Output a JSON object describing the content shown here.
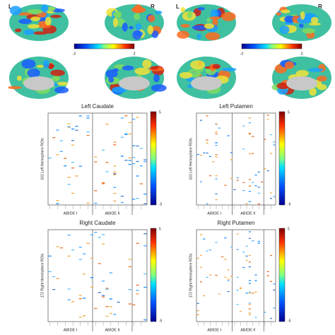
{
  "brain_maps": [
    {
      "left_label": "L",
      "right_label": "R",
      "colorbar": {
        "min": "-3",
        "max": "3"
      }
    },
    {
      "left_label": "L",
      "right_label": "R",
      "colorbar": {
        "min": "-3",
        "max": "3"
      }
    }
  ],
  "panels": [
    {
      "title": "Left Caudate",
      "y_label": "161 Left Hemisphere ROIs",
      "x_groups": [
        "ABIDE I",
        "ABIDE II"
      ],
      "colorbar": {
        "max": "5",
        "min": "-5"
      }
    },
    {
      "title": "Left Putamen",
      "y_label": "161 Left Hemisphere ROIs",
      "x_groups": [
        "ABIDE I",
        "ABIDE II"
      ],
      "colorbar": {
        "max": "5",
        "min": "-5"
      }
    },
    {
      "title": "Right Caudate",
      "y_label": "172 Right Hemisphere ROIs",
      "x_groups": [
        "ABIDE I",
        "ABIDE II"
      ],
      "colorbar": {
        "max": "5",
        "min": "-5"
      }
    },
    {
      "title": "Right Putamen",
      "y_label": "172 Right Hemisphere ROIs",
      "x_groups": [
        "ABIDE I",
        "ABIDE II"
      ],
      "colorbar": {
        "max": "5",
        "min": "-5"
      }
    }
  ]
}
